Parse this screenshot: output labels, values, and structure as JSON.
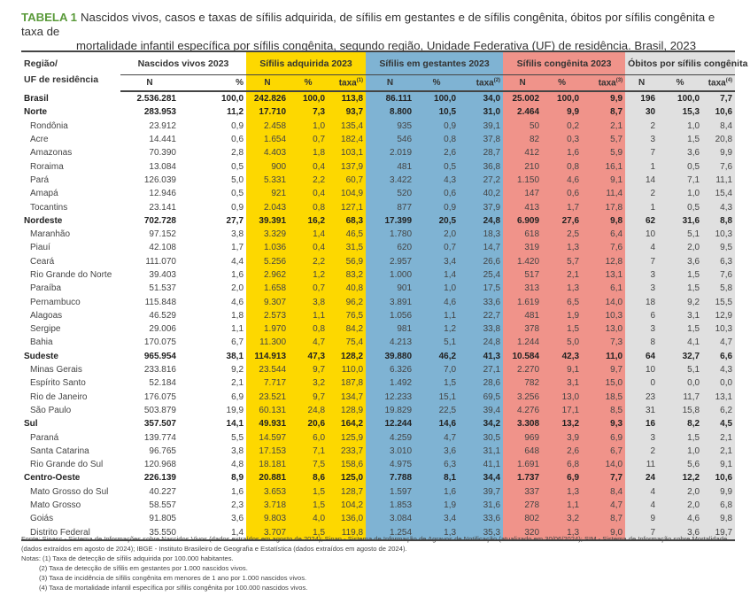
{
  "title": {
    "tag": "TABELA 1",
    "line1": "Nascidos vivos, casos e taxas de sífilis adquirida, de sífilis em gestantes e de sífilis congênita, óbitos por sífilis congênita e taxa de",
    "line2": "mortalidade infantil específica por sífilis congênita, segundo região, Unidade Federativa (UF) de residência. Brasil, 2023"
  },
  "colors": {
    "title_tag": "#5a9a3a",
    "adquirida": "#fdd800",
    "gestantes": "#7fb3d3",
    "congenita": "#f0938a",
    "obitos": "#e0e0e0"
  },
  "header": {
    "region_line1": "Região/",
    "region_line2": "UF de residência",
    "groups": [
      "Nascidos vivos 2023",
      "Sífilis adquirida 2023",
      "Sífilis em gestantes 2023",
      "Sífilis congênita 2023",
      "Óbitos por sífilis congênita 2023"
    ],
    "n": "N",
    "pct": "%",
    "taxa": "taxa",
    "sup": [
      "(1)",
      "(2)",
      "(3)",
      "(4)"
    ]
  },
  "rows": [
    {
      "name": "Brasil",
      "type": "bold",
      "v": [
        "2.536.281",
        "100,0",
        "242.826",
        "100,0",
        "113,8",
        "86.111",
        "100,0",
        "34,0",
        "25.002",
        "100,0",
        "9,9",
        "196",
        "100,0",
        "7,7"
      ]
    },
    {
      "name": "Norte",
      "type": "bold",
      "v": [
        "283.953",
        "11,2",
        "17.710",
        "7,3",
        "93,7",
        "8.800",
        "10,5",
        "31,0",
        "2.464",
        "9,9",
        "8,7",
        "30",
        "15,3",
        "10,6"
      ]
    },
    {
      "name": "Rondônia",
      "type": "state",
      "v": [
        "23.912",
        "0,9",
        "2.458",
        "1,0",
        "135,4",
        "935",
        "0,9",
        "39,1",
        "50",
        "0,2",
        "2,1",
        "2",
        "1,0",
        "8,4"
      ]
    },
    {
      "name": "Acre",
      "type": "state",
      "v": [
        "14.441",
        "0,6",
        "1.654",
        "0,7",
        "182,4",
        "546",
        "0,8",
        "37,8",
        "82",
        "0,3",
        "5,7",
        "3",
        "1,5",
        "20,8"
      ]
    },
    {
      "name": "Amazonas",
      "type": "state",
      "v": [
        "70.390",
        "2,8",
        "4.403",
        "1,8",
        "103,1",
        "2.019",
        "2,6",
        "28,7",
        "412",
        "1,6",
        "5,9",
        "7",
        "3,6",
        "9,9"
      ]
    },
    {
      "name": "Roraima",
      "type": "state",
      "v": [
        "13.084",
        "0,5",
        "900",
        "0,4",
        "137,9",
        "481",
        "0,5",
        "36,8",
        "210",
        "0,8",
        "16,1",
        "1",
        "0,5",
        "7,6"
      ]
    },
    {
      "name": "Pará",
      "type": "state",
      "v": [
        "126.039",
        "5,0",
        "5.331",
        "2,2",
        "60,7",
        "3.422",
        "4,3",
        "27,2",
        "1.150",
        "4,6",
        "9,1",
        "14",
        "7,1",
        "11,1"
      ]
    },
    {
      "name": "Amapá",
      "type": "state",
      "v": [
        "12.946",
        "0,5",
        "921",
        "0,4",
        "104,9",
        "520",
        "0,6",
        "40,2",
        "147",
        "0,6",
        "11,4",
        "2",
        "1,0",
        "15,4"
      ]
    },
    {
      "name": "Tocantins",
      "type": "state",
      "v": [
        "23.141",
        "0,9",
        "2.043",
        "0,8",
        "127,1",
        "877",
        "0,9",
        "37,9",
        "413",
        "1,7",
        "17,8",
        "1",
        "0,5",
        "4,3"
      ]
    },
    {
      "name": "Nordeste",
      "type": "bold",
      "v": [
        "702.728",
        "27,7",
        "39.391",
        "16,2",
        "68,3",
        "17.399",
        "20,5",
        "24,8",
        "6.909",
        "27,6",
        "9,8",
        "62",
        "31,6",
        "8,8"
      ]
    },
    {
      "name": "Maranhão",
      "type": "state",
      "v": [
        "97.152",
        "3,8",
        "3.329",
        "1,4",
        "46,5",
        "1.780",
        "2,0",
        "18,3",
        "618",
        "2,5",
        "6,4",
        "10",
        "5,1",
        "10,3"
      ]
    },
    {
      "name": "Piauí",
      "type": "state",
      "v": [
        "42.108",
        "1,7",
        "1.036",
        "0,4",
        "31,5",
        "620",
        "0,7",
        "14,7",
        "319",
        "1,3",
        "7,6",
        "4",
        "2,0",
        "9,5"
      ]
    },
    {
      "name": "Ceará",
      "type": "state",
      "v": [
        "111.070",
        "4,4",
        "5.256",
        "2,2",
        "56,9",
        "2.957",
        "3,4",
        "26,6",
        "1.420",
        "5,7",
        "12,8",
        "7",
        "3,6",
        "6,3"
      ]
    },
    {
      "name": "Rio Grande do Norte",
      "type": "state",
      "v": [
        "39.403",
        "1,6",
        "2.962",
        "1,2",
        "83,2",
        "1.000",
        "1,4",
        "25,4",
        "517",
        "2,1",
        "13,1",
        "3",
        "1,5",
        "7,6"
      ]
    },
    {
      "name": "Paraíba",
      "type": "state",
      "v": [
        "51.537",
        "2,0",
        "1.658",
        "0,7",
        "40,8",
        "901",
        "1,0",
        "17,5",
        "313",
        "1,3",
        "6,1",
        "3",
        "1,5",
        "5,8"
      ]
    },
    {
      "name": "Pernambuco",
      "type": "state",
      "v": [
        "115.848",
        "4,6",
        "9.307",
        "3,8",
        "96,2",
        "3.891",
        "4,6",
        "33,6",
        "1.619",
        "6,5",
        "14,0",
        "18",
        "9,2",
        "15,5"
      ]
    },
    {
      "name": "Alagoas",
      "type": "state",
      "v": [
        "46.529",
        "1,8",
        "2.573",
        "1,1",
        "76,5",
        "1.056",
        "1,1",
        "22,7",
        "481",
        "1,9",
        "10,3",
        "6",
        "3,1",
        "12,9"
      ]
    },
    {
      "name": "Sergipe",
      "type": "state",
      "v": [
        "29.006",
        "1,1",
        "1.970",
        "0,8",
        "84,2",
        "981",
        "1,2",
        "33,8",
        "378",
        "1,5",
        "13,0",
        "3",
        "1,5",
        "10,3"
      ]
    },
    {
      "name": "Bahia",
      "type": "state",
      "v": [
        "170.075",
        "6,7",
        "11.300",
        "4,7",
        "75,4",
        "4.213",
        "5,1",
        "24,8",
        "1.244",
        "5,0",
        "7,3",
        "8",
        "4,1",
        "4,7"
      ]
    },
    {
      "name": "Sudeste",
      "type": "bold",
      "v": [
        "965.954",
        "38,1",
        "114.913",
        "47,3",
        "128,2",
        "39.880",
        "46,2",
        "41,3",
        "10.584",
        "42,3",
        "11,0",
        "64",
        "32,7",
        "6,6"
      ]
    },
    {
      "name": "Minas Gerais",
      "type": "state",
      "v": [
        "233.816",
        "9,2",
        "23.544",
        "9,7",
        "110,0",
        "6.326",
        "7,0",
        "27,1",
        "2.270",
        "9,1",
        "9,7",
        "10",
        "5,1",
        "4,3"
      ]
    },
    {
      "name": "Espírito Santo",
      "type": "state",
      "v": [
        "52.184",
        "2,1",
        "7.717",
        "3,2",
        "187,8",
        "1.492",
        "1,5",
        "28,6",
        "782",
        "3,1",
        "15,0",
        "0",
        "0,0",
        "0,0"
      ]
    },
    {
      "name": "Rio de Janeiro",
      "type": "state",
      "v": [
        "176.075",
        "6,9",
        "23.521",
        "9,7",
        "134,7",
        "12.233",
        "15,1",
        "69,5",
        "3.256",
        "13,0",
        "18,5",
        "23",
        "11,7",
        "13,1"
      ]
    },
    {
      "name": "São Paulo",
      "type": "state",
      "v": [
        "503.879",
        "19,9",
        "60.131",
        "24,8",
        "128,9",
        "19.829",
        "22,5",
        "39,4",
        "4.276",
        "17,1",
        "8,5",
        "31",
        "15,8",
        "6,2"
      ]
    },
    {
      "name": "Sul",
      "type": "bold",
      "v": [
        "357.507",
        "14,1",
        "49.931",
        "20,6",
        "164,2",
        "12.244",
        "14,6",
        "34,2",
        "3.308",
        "13,2",
        "9,3",
        "16",
        "8,2",
        "4,5"
      ]
    },
    {
      "name": "Paraná",
      "type": "state",
      "v": [
        "139.774",
        "5,5",
        "14.597",
        "6,0",
        "125,9",
        "4.259",
        "4,7",
        "30,5",
        "969",
        "3,9",
        "6,9",
        "3",
        "1,5",
        "2,1"
      ]
    },
    {
      "name": "Santa Catarina",
      "type": "state",
      "v": [
        "96.765",
        "3,8",
        "17.153",
        "7,1",
        "233,7",
        "3.010",
        "3,6",
        "31,1",
        "648",
        "2,6",
        "6,7",
        "2",
        "1,0",
        "2,1"
      ]
    },
    {
      "name": "Rio Grande do Sul",
      "type": "state",
      "v": [
        "120.968",
        "4,8",
        "18.181",
        "7,5",
        "158,6",
        "4.975",
        "6,3",
        "41,1",
        "1.691",
        "6,8",
        "14,0",
        "11",
        "5,6",
        "9,1"
      ]
    },
    {
      "name": "Centro-Oeste",
      "type": "bold",
      "v": [
        "226.139",
        "8,9",
        "20.881",
        "8,6",
        "125,0",
        "7.788",
        "8,1",
        "34,4",
        "1.737",
        "6,9",
        "7,7",
        "24",
        "12,2",
        "10,6"
      ]
    },
    {
      "name": "Mato Grosso do Sul",
      "type": "state",
      "v": [
        "40.227",
        "1,6",
        "3.653",
        "1,5",
        "128,7",
        "1.597",
        "1,6",
        "39,7",
        "337",
        "1,3",
        "8,4",
        "4",
        "2,0",
        "9,9"
      ]
    },
    {
      "name": "Mato Grosso",
      "type": "state",
      "v": [
        "58.557",
        "2,3",
        "3.718",
        "1,5",
        "104,2",
        "1.853",
        "1,9",
        "31,6",
        "278",
        "1,1",
        "4,7",
        "4",
        "2,0",
        "6,8"
      ]
    },
    {
      "name": "Goiás",
      "type": "state",
      "v": [
        "91.805",
        "3,6",
        "9.803",
        "4,0",
        "136,0",
        "3.084",
        "3,4",
        "33,6",
        "802",
        "3,2",
        "8,7",
        "9",
        "4,6",
        "9,8"
      ]
    },
    {
      "name": "Distrito Federal",
      "type": "state",
      "v": [
        "35.550",
        "1,4",
        "3.707",
        "1,5",
        "119,8",
        "1.254",
        "1,3",
        "35,3",
        "320",
        "1,3",
        "9,0",
        "7",
        "3,6",
        "19,7"
      ]
    }
  ],
  "footer": {
    "source": "Fonte: Sinasc - Sistema de Informações sobre Nascidos Vivos (dados extraídos em agosto de 2024); Sinan - Sistema de Informação de Agravos de Notificação (atualizado em 30/06/2024); SIM - Sistema de Informação sobre Mortalidade (dados extraídos em agosto de 2024); IBGE - Instituto Brasileiro de Geografia e Estatística (dados extraídos em agosto de 2024).",
    "notes": [
      "Notas: (1) Taxa de detecção de sífilis adquirida por 100.000 habitantes.",
      "(2) Taxa de detecção de sífilis em gestantes por 1.000 nascidos vivos.",
      "(3) Taxa de incidência de sífilis congênita em menores de 1 ano por 1.000 nascidos vivos.",
      "(4) Taxa de mortalidade infantil específica por sífilis congênita por 100.000 nascidos vivos."
    ]
  }
}
